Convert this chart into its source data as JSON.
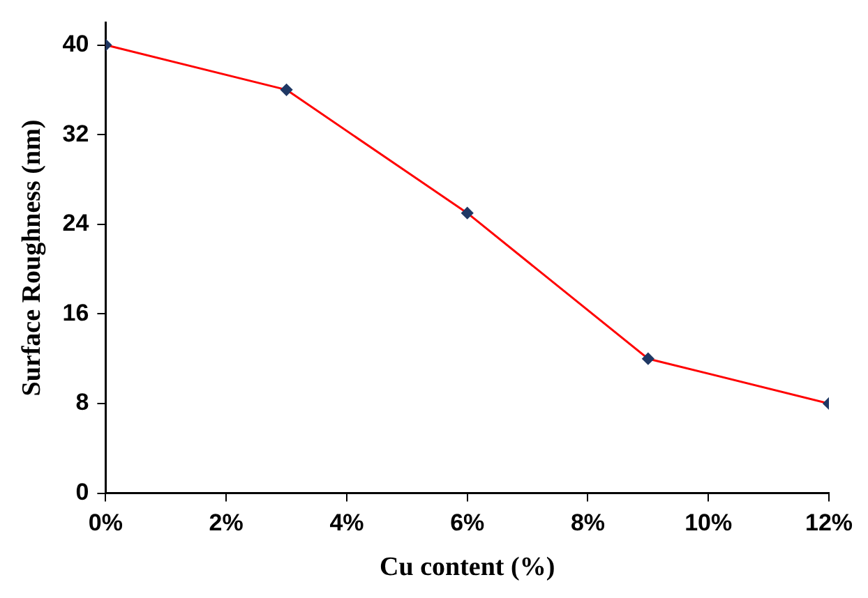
{
  "chart_data": {
    "type": "line",
    "xlabel": "Cu content (%)",
    "ylabel": "Surface Roughness (nm)",
    "x": [
      0,
      3,
      6,
      9,
      12
    ],
    "series": [
      {
        "color": "#ff0000",
        "values": [
          40,
          36,
          25,
          12,
          8
        ]
      }
    ],
    "xlim": [
      0,
      12
    ],
    "xticks": [
      {
        "value": 0,
        "label": "0%"
      },
      {
        "value": 2,
        "label": "2%"
      },
      {
        "value": 4,
        "label": "4%"
      },
      {
        "value": 6,
        "label": "6%"
      },
      {
        "value": 8,
        "label": "8%"
      },
      {
        "value": 10,
        "label": "10%"
      },
      {
        "value": 12,
        "label": "12%"
      }
    ],
    "ylim": [
      0,
      42
    ],
    "yticks": [
      0,
      8,
      16,
      24,
      32,
      40
    ],
    "grid": false,
    "legend": false,
    "marker": "diamond",
    "line_style": "solid"
  }
}
